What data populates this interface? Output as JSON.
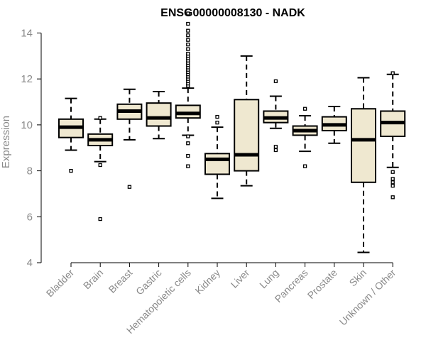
{
  "chart_data": {
    "type": "boxplot",
    "title": "ENSG00000008130 - NADK",
    "xlabel": "",
    "ylabel": "Expression",
    "ylim": [
      4,
      14.2
    ],
    "yticks": [
      4,
      6,
      8,
      10,
      12,
      14
    ],
    "box_fill": "#efe8d0",
    "outline_color": "#000000",
    "categories": [
      "Bladder",
      "Brain",
      "Breast",
      "Gastric",
      "Hematopoietic cells",
      "Kidney",
      "Liver",
      "Lung",
      "Pancreas",
      "Prostate",
      "Skin",
      "Unknown / Other"
    ],
    "boxes": [
      {
        "category": "Bladder",
        "whisker_low": 8.9,
        "q1": 9.45,
        "median": 9.9,
        "q3": 10.25,
        "whisker_high": 11.15,
        "outliers": [
          8.0
        ]
      },
      {
        "category": "Brain",
        "whisker_low": 8.4,
        "q1": 9.1,
        "median": 9.35,
        "q3": 9.6,
        "whisker_high": 10.25,
        "outliers": [
          10.3,
          8.25,
          5.9
        ]
      },
      {
        "category": "Breast",
        "whisker_low": 9.35,
        "q1": 10.25,
        "median": 10.6,
        "q3": 10.9,
        "whisker_high": 11.55,
        "outliers": [
          7.3
        ]
      },
      {
        "category": "Gastric",
        "whisker_low": 9.4,
        "q1": 9.95,
        "median": 10.3,
        "q3": 10.95,
        "whisker_high": 11.45,
        "outliers": []
      },
      {
        "category": "Hematopoietic cells",
        "whisker_low": 9.55,
        "q1": 10.3,
        "median": 10.5,
        "q3": 10.85,
        "whisker_high": 11.6,
        "outliers": [
          11.7,
          11.8,
          11.9,
          12.0,
          12.1,
          12.2,
          12.3,
          12.4,
          12.5,
          12.6,
          12.7,
          12.8,
          12.9,
          13.0,
          13.1,
          13.3,
          13.5,
          13.7,
          13.9,
          14.1,
          14.4,
          14.85,
          9.5,
          9.2,
          8.65,
          8.2
        ]
      },
      {
        "category": "Kidney",
        "whisker_low": 6.8,
        "q1": 7.85,
        "median": 8.5,
        "q3": 8.75,
        "whisker_high": 9.9,
        "outliers": [
          10.1,
          10.35
        ]
      },
      {
        "category": "Liver",
        "whisker_low": 7.35,
        "q1": 8.0,
        "median": 8.7,
        "q3": 11.1,
        "whisker_high": 13.0,
        "outliers": []
      },
      {
        "category": "Lung",
        "whisker_low": 9.85,
        "q1": 10.1,
        "median": 10.3,
        "q3": 10.6,
        "whisker_high": 11.25,
        "outliers": [
          11.9,
          9.05,
          8.9
        ]
      },
      {
        "category": "Pancreas",
        "whisker_low": 8.85,
        "q1": 9.55,
        "median": 9.75,
        "q3": 9.95,
        "whisker_high": 10.4,
        "outliers": [
          10.7,
          8.2
        ]
      },
      {
        "category": "Prostate",
        "whisker_low": 9.2,
        "q1": 9.75,
        "median": 10.0,
        "q3": 10.35,
        "whisker_high": 10.8,
        "outliers": []
      },
      {
        "category": "Skin",
        "whisker_low": 4.45,
        "q1": 7.5,
        "median": 9.35,
        "q3": 10.7,
        "whisker_high": 12.05,
        "outliers": []
      },
      {
        "category": "Unknown / Other",
        "whisker_low": 8.15,
        "q1": 9.5,
        "median": 10.1,
        "q3": 10.6,
        "whisker_high": 12.2,
        "outliers": [
          12.25,
          7.95,
          7.65,
          7.5,
          7.35,
          6.85
        ]
      }
    ]
  }
}
